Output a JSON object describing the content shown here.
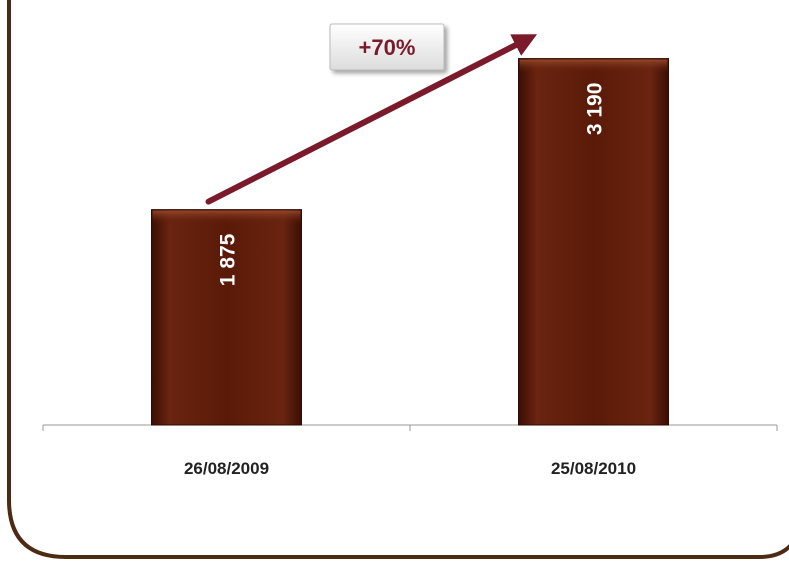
{
  "chart_data": {
    "type": "bar",
    "categories": [
      "26/08/2009",
      "25/08/2010"
    ],
    "values": [
      1875,
      3190
    ],
    "value_labels": [
      "1 875",
      "3 190"
    ],
    "ylim": [
      0,
      3700
    ],
    "grid": false,
    "legend": "none",
    "annotation": {
      "label": "+70%",
      "from_category": 0,
      "to_category": 1
    }
  },
  "colors": {
    "bar": "#5a1a08",
    "bar_edge": "#2e0a02",
    "bar_highlight": "#8a3a20",
    "frame": "#4d2a14",
    "arrow": "#7a1a2a",
    "axis": "#999999",
    "text": "#222222",
    "value_text": "#ffffff"
  }
}
